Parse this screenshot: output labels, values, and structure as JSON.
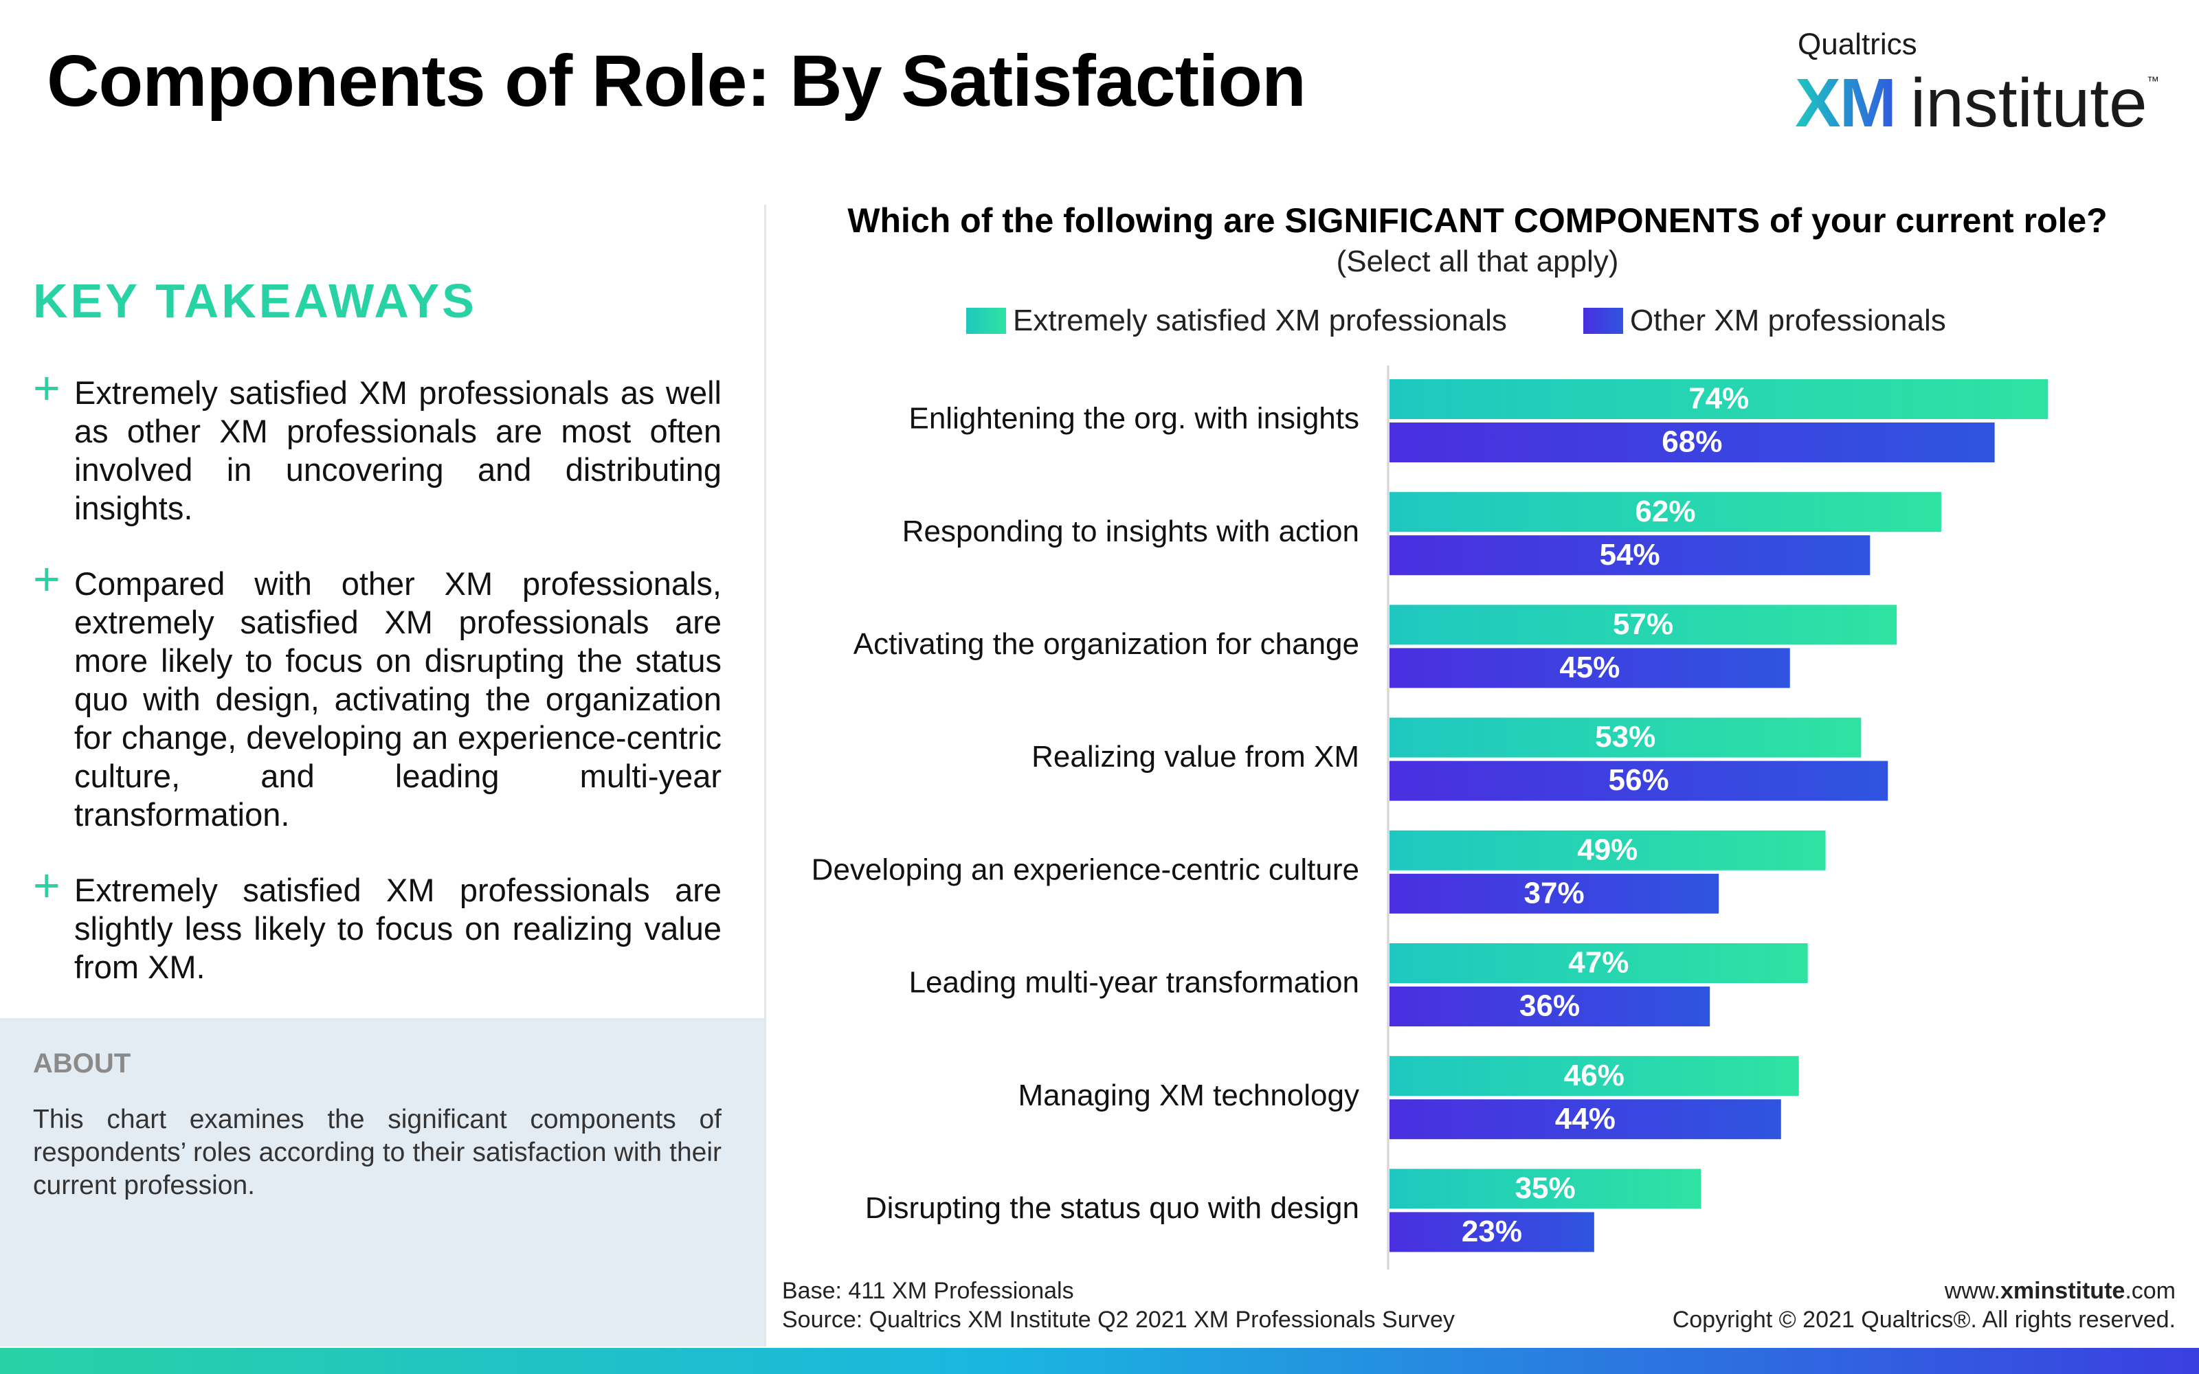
{
  "title": "Components of Role: By Satisfaction",
  "logo": {
    "brand": "Qualtrics",
    "xm": "XM",
    "institute": "institute",
    "tm": "™"
  },
  "key_takeaways": {
    "heading": "KEY TAKEAWAYS",
    "items": [
      "Extremely satisfied XM professionals as well as other XM professionals are most often involved in uncovering and distributing insights.",
      "Compared with other XM professionals, extremely satisfied XM professionals are more likely to focus on disrupting the status quo with design, activating the organization for change,  developing an experience-centric culture, and leading multi-year transformation.",
      "Extremely satisfied XM professionals are slightly less likely to focus on realizing value from XM."
    ],
    "bullet": "+"
  },
  "about": {
    "label": "ABOUT",
    "text": "This chart examines the significant components of respondents’ roles according to their satisfaction with their current profession."
  },
  "chart_data": {
    "type": "bar",
    "orientation": "horizontal",
    "title": "Which of the following are SIGNIFICANT COMPONENTS of your current role?",
    "subtitle": "(Select all that apply)",
    "categories": [
      "Enlightening the org. with insights",
      "Responding to insights with action",
      "Activating the organization for change",
      "Realizing value from XM",
      "Developing an experience-centric culture",
      "Leading multi-year transformation",
      "Managing XM technology",
      "Disrupting the status quo with design"
    ],
    "series": [
      {
        "name": "Extremely satisfied XM professionals",
        "values": [
          74,
          62,
          57,
          53,
          49,
          47,
          46,
          35
        ],
        "color": "#22d3b0"
      },
      {
        "name": "Other XM professionals",
        "values": [
          68,
          54,
          45,
          56,
          37,
          36,
          44,
          23
        ],
        "color": "#3b3fe0"
      }
    ],
    "value_suffix": "%",
    "xlim": [
      0,
      100
    ],
    "legend_position": "top",
    "grid": false,
    "axis_labels_shown": false
  },
  "footer": {
    "base": "Base: 411 XM Professionals",
    "source": "Source: Qualtrics XM Institute Q2 2021 XM Professionals Survey",
    "site_prefix": "www.",
    "site_bold": "xminstitute",
    "site_suffix": ".com",
    "copyright": "Copyright © 2021 Qualtrics®. All rights reserved."
  }
}
